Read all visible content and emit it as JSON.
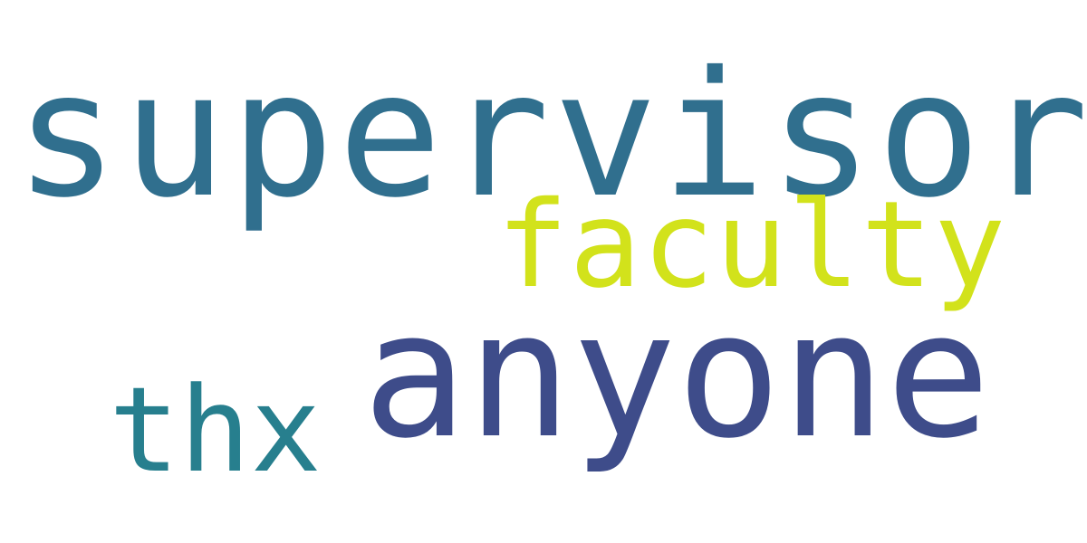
{
  "words": [
    {
      "text": "supervisor",
      "color": "#306f8e"
    },
    {
      "text": "faculty",
      "color": "#d2e21b"
    },
    {
      "text": "anyone",
      "color": "#3e4c8a"
    },
    {
      "text": "thx",
      "color": "#277f8e"
    }
  ]
}
